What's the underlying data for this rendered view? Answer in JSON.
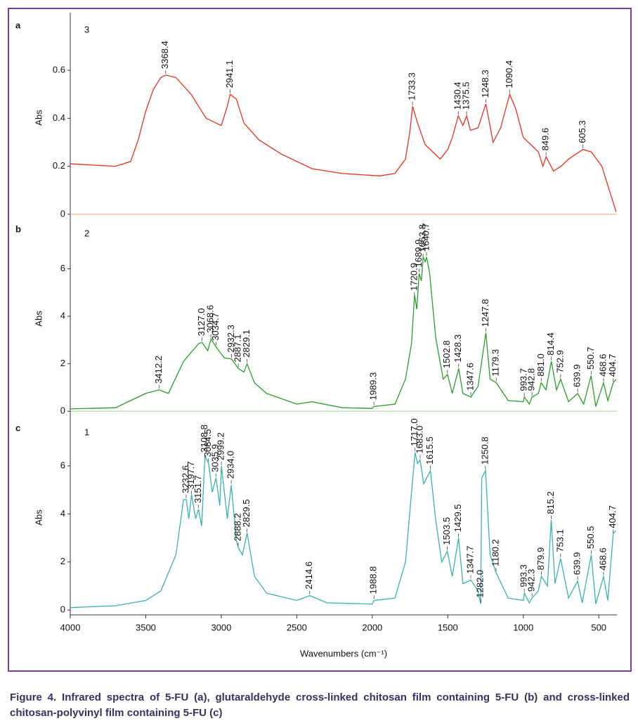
{
  "chart_data": [
    {
      "panel": "a",
      "label": "3",
      "type": "line",
      "y_label": "Abs",
      "color": "#e8301e",
      "baseline_color": "#f0a070",
      "xlim": [
        4000,
        380
      ],
      "ylim": [
        -0.015,
        0.82
      ],
      "yticks": [
        0,
        0.2,
        0.4,
        0.6
      ],
      "x": [
        4000,
        3700,
        3600,
        3550,
        3500,
        3450,
        3400,
        3368,
        3300,
        3200,
        3100,
        3000,
        2960,
        2941,
        2900,
        2850,
        2750,
        2600,
        2400,
        2200,
        1950,
        1850,
        1780,
        1750,
        1733,
        1700,
        1650,
        1550,
        1500,
        1470,
        1430,
        1400,
        1375,
        1350,
        1300,
        1248,
        1200,
        1150,
        1090,
        1050,
        1000,
        950,
        900,
        870,
        849,
        800,
        750,
        700,
        605,
        550,
        480,
        420,
        385
      ],
      "values": [
        0.21,
        0.2,
        0.22,
        0.31,
        0.43,
        0.52,
        0.57,
        0.58,
        0.57,
        0.5,
        0.4,
        0.37,
        0.45,
        0.5,
        0.48,
        0.38,
        0.31,
        0.25,
        0.19,
        0.17,
        0.16,
        0.17,
        0.23,
        0.35,
        0.45,
        0.38,
        0.29,
        0.23,
        0.27,
        0.32,
        0.41,
        0.37,
        0.41,
        0.35,
        0.36,
        0.46,
        0.3,
        0.36,
        0.5,
        0.44,
        0.32,
        0.29,
        0.26,
        0.2,
        0.24,
        0.18,
        0.2,
        0.23,
        0.27,
        0.26,
        0.2,
        0.08,
        0.01
      ],
      "peaks": [
        3368.4,
        2941.1,
        1733.3,
        1430.4,
        1375.5,
        1248.3,
        1090.4,
        849.6,
        605.3
      ]
    },
    {
      "panel": "b",
      "label": "2",
      "type": "line",
      "y_label": "Abs",
      "color": "#2a9d2a",
      "baseline_color": "#9fd89f",
      "xlim": [
        4000,
        380
      ],
      "ylim": [
        -0.2,
        8
      ],
      "yticks": [
        0,
        2,
        4,
        6
      ],
      "x": [
        4000,
        3700,
        3600,
        3500,
        3412,
        3350,
        3250,
        3150,
        3127,
        3090,
        3068,
        3034,
        2980,
        2932,
        2887,
        2850,
        2829,
        2780,
        2700,
        2500,
        2400,
        2200,
        2000,
        1989,
        1850,
        1780,
        1740,
        1720,
        1705,
        1690,
        1675,
        1663,
        1650,
        1640,
        1620,
        1580,
        1530,
        1502,
        1470,
        1428,
        1400,
        1347,
        1300,
        1248,
        1220,
        1179,
        1100,
        1000,
        993,
        960,
        942,
        900,
        881,
        850,
        814,
        780,
        753,
        700,
        640,
        600,
        551,
        520,
        469,
        440,
        404,
        385
      ],
      "values": [
        0.1,
        0.15,
        0.45,
        0.75,
        0.9,
        0.75,
        2.1,
        2.85,
        2.9,
        2.55,
        3.05,
        2.7,
        2.25,
        2.2,
        1.8,
        1.65,
        2.0,
        1.2,
        0.75,
        0.3,
        0.4,
        0.15,
        0.12,
        0.2,
        0.3,
        1.35,
        2.85,
        4.9,
        4.3,
        5.8,
        5.5,
        6.5,
        6.3,
        6.5,
        5.8,
        3.1,
        1.35,
        1.55,
        0.75,
        1.8,
        0.75,
        0.6,
        1.05,
        3.3,
        1.35,
        1.2,
        0.45,
        0.4,
        0.6,
        0.3,
        0.6,
        0.75,
        1.2,
        0.9,
        2.1,
        0.9,
        1.35,
        0.4,
        0.75,
        0.3,
        1.5,
        0.2,
        1.2,
        0.45,
        1.2,
        1.35
      ],
      "peaks": [
        3412.2,
        {
          "value": 3127.0,
          "label": "3127.0"
        },
        3068.6,
        3034.7,
        2932.3,
        2887.1,
        2829.1,
        1989.3,
        1720.9,
        1689.9,
        1663.8,
        1640.7,
        1502.8,
        1428.3,
        1347.6,
        1247.8,
        1179.3,
        993.7,
        942.8,
        {
          "value": 881.0,
          "label": "881.0"
        },
        814.4,
        752.9,
        639.9,
        550.7,
        468.6,
        404.7
      ]
    },
    {
      "panel": "c",
      "label": "1",
      "type": "line",
      "y_label": "Abs",
      "color": "#3ab0b0",
      "xlim": [
        4000,
        380
      ],
      "ylim": [
        -0.2,
        7.9
      ],
      "yticks": [
        0,
        2,
        4,
        6
      ],
      "xticks": [
        4000,
        3500,
        3000,
        2500,
        2000,
        1500,
        1000,
        500
      ],
      "x_label": "Wavenumbers (cm⁻¹)",
      "x": [
        4000,
        3700,
        3500,
        3400,
        3300,
        3250,
        3232,
        3215,
        3197,
        3170,
        3151,
        3130,
        3108,
        3084,
        3060,
        3035,
        3010,
        2999,
        2960,
        2934,
        2900,
        2888,
        2860,
        2829,
        2780,
        2700,
        2500,
        2414,
        2300,
        2000,
        1989,
        1850,
        1780,
        1740,
        1717,
        1700,
        1683,
        1660,
        1615,
        1580,
        1540,
        1503,
        1470,
        1429,
        1400,
        1347,
        1300,
        1282,
        1275,
        1250,
        1220,
        1180,
        1100,
        1000,
        993,
        960,
        942,
        900,
        880,
        840,
        815,
        790,
        753,
        700,
        640,
        610,
        550,
        520,
        469,
        440,
        404,
        385
      ],
      "values": [
        0.1,
        0.18,
        0.4,
        0.8,
        2.3,
        4.6,
        4.6,
        3.8,
        4.8,
        3.8,
        4.2,
        3.5,
        6.4,
        6.1,
        4.9,
        5.5,
        4.35,
        6.0,
        3.8,
        5.2,
        2.9,
        2.6,
        2.3,
        3.2,
        1.4,
        0.7,
        0.4,
        0.6,
        0.3,
        0.25,
        0.4,
        0.5,
        2.0,
        4.9,
        6.55,
        6.1,
        6.25,
        5.25,
        5.8,
        3.75,
        2.0,
        2.45,
        1.4,
        3.0,
        1.1,
        1.25,
        0.8,
        0.25,
        5.5,
        5.8,
        2.3,
        1.55,
        0.5,
        0.4,
        0.7,
        0.3,
        0.5,
        0.8,
        1.4,
        1.0,
        3.75,
        1.1,
        2.15,
        0.5,
        1.2,
        0.3,
        2.3,
        0.25,
        1.4,
        0.4,
        3.2,
        3.3
      ],
      "peaks": [
        3232.6,
        3197.7,
        3151.7,
        3108.8,
        3084.5,
        3035.9,
        2999.2,
        {
          "value": 2934.0,
          "label": "2934.0"
        },
        2888.2,
        2829.5,
        2414.6,
        1988.8,
        {
          "value": 1717.0,
          "label": "1717.0"
        },
        {
          "value": 1683.0,
          "label": "1683.0"
        },
        1615.5,
        1503.5,
        1429.5,
        1347.7,
        {
          "value": 1282.0,
          "label": "1282.0"
        },
        1250.8,
        1180.2,
        993.3,
        942.3,
        879.9,
        815.2,
        753.1,
        639.9,
        550.5,
        468.6,
        404.7
      ]
    }
  ],
  "caption": "Figure 4. Infrared spectra of 5-FU (a), glutaraldehyde cross-linked chitosan film containing 5-FU (b) and cross-linked chitosan-polyvinyl film containing 5-FU (c)"
}
